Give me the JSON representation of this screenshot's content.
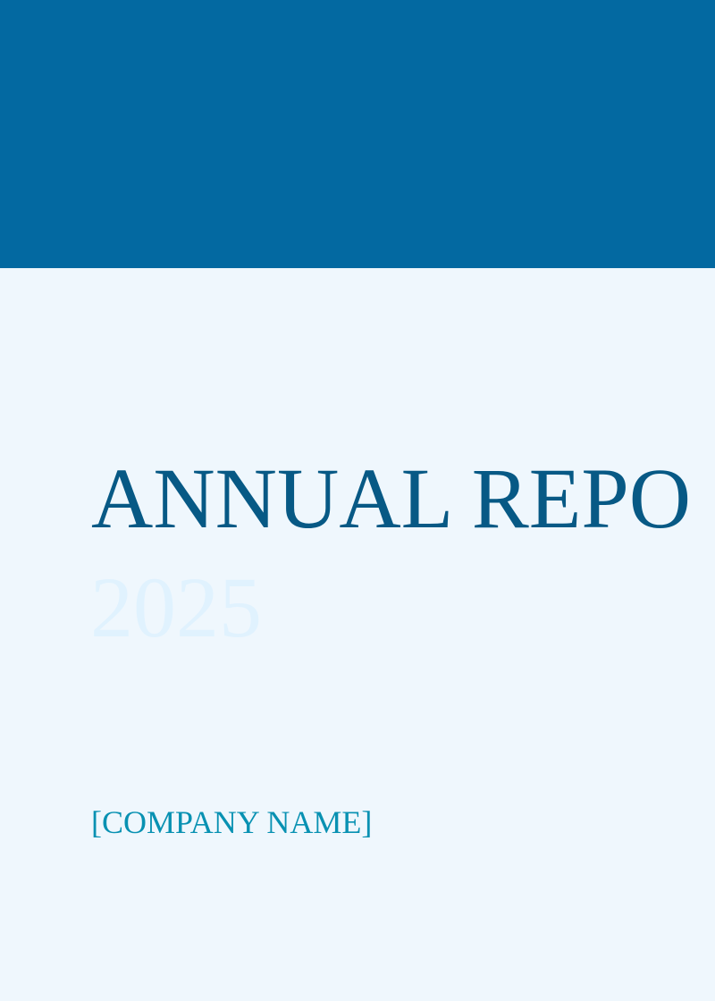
{
  "cover": {
    "title": "ANNUAL REPO",
    "year": "2025",
    "company_name": "[COMPANY NAME]"
  },
  "colors": {
    "header_band": "#0369a1",
    "background": "#eff7fd",
    "title": "#075985",
    "year": "#e0f2fe",
    "company_name": "#0891b2"
  }
}
